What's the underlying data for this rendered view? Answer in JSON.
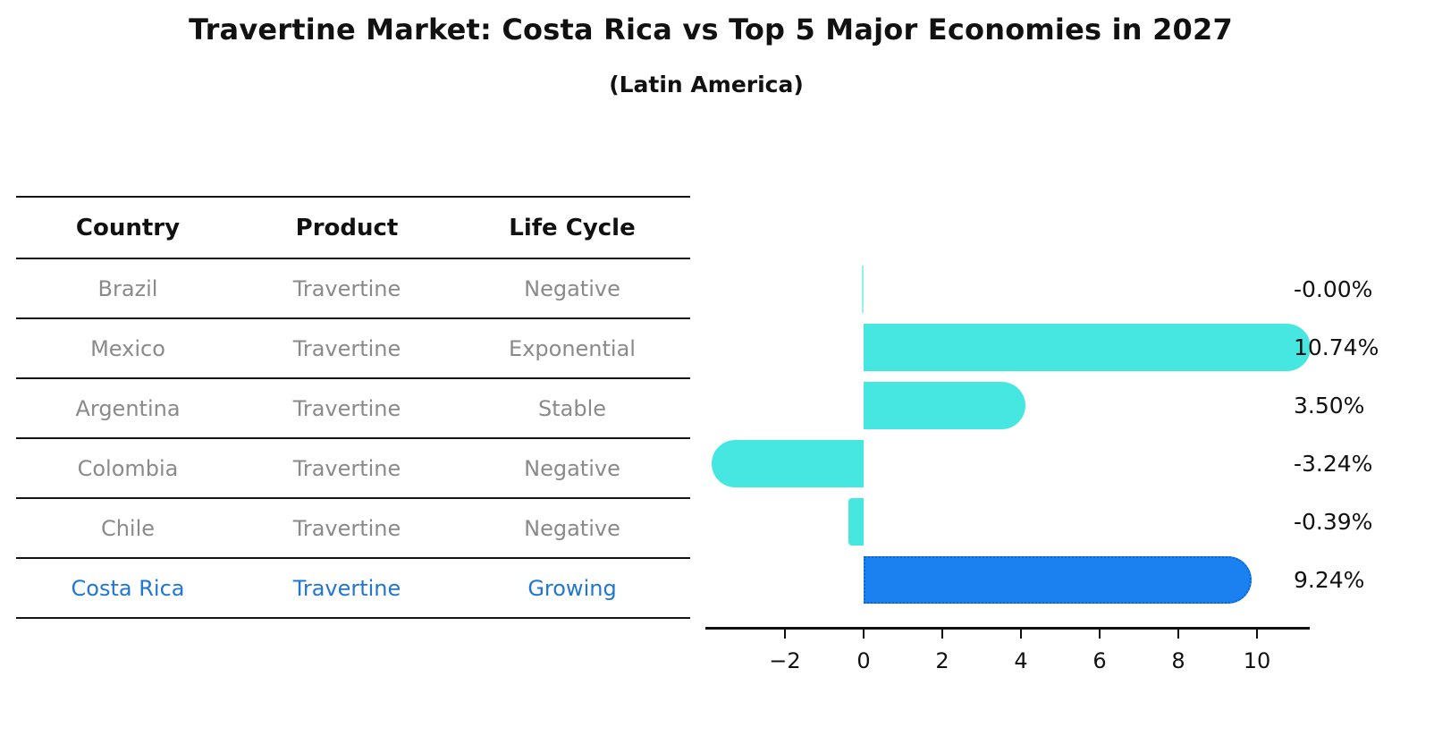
{
  "title": "Travertine Market: Costa Rica vs Top 5 Major Economies in 2027",
  "subtitle": "(Latin America)",
  "table": {
    "headers": [
      "Country",
      "Product",
      "Life Cycle"
    ],
    "rows": [
      {
        "country": "Brazil",
        "product": "Travertine",
        "life_cycle": "Negative",
        "highlight": false
      },
      {
        "country": "Mexico",
        "product": "Travertine",
        "life_cycle": "Exponential",
        "highlight": false
      },
      {
        "country": "Argentina",
        "product": "Travertine",
        "life_cycle": "Stable",
        "highlight": false
      },
      {
        "country": "Colombia",
        "product": "Travertine",
        "life_cycle": "Negative",
        "highlight": false
      },
      {
        "country": "Chile",
        "product": "Travertine",
        "life_cycle": "Negative",
        "highlight": false
      },
      {
        "country": "Costa Rica",
        "product": "Travertine",
        "life_cycle": "Growing",
        "highlight": true
      }
    ]
  },
  "chart_data": {
    "type": "bar",
    "orientation": "horizontal",
    "categories": [
      "Brazil",
      "Mexico",
      "Argentina",
      "Colombia",
      "Chile",
      "Costa Rica"
    ],
    "values": [
      -0.0,
      10.74,
      3.5,
      -3.24,
      -0.39,
      9.24
    ],
    "value_labels": [
      "-0.00%",
      "10.74%",
      "3.50%",
      "-3.24%",
      "-0.39%",
      "9.24%"
    ],
    "x_ticks": [
      -2,
      0,
      2,
      4,
      6,
      8,
      10
    ],
    "x_tick_labels": [
      "−2",
      "0",
      "2",
      "4",
      "6",
      "8",
      "10"
    ],
    "xlim": [
      -4,
      11.3
    ],
    "grid": false,
    "legend": "none",
    "highlight_index": 5,
    "colors": {
      "bar_default": "#47e7e1",
      "bar_highlight": "#1b80f0",
      "bar_highlight_border": "#0c66d6",
      "highlight_text": "#2076d2",
      "table_text": "#8a8a8a",
      "axis": "#111111"
    }
  }
}
